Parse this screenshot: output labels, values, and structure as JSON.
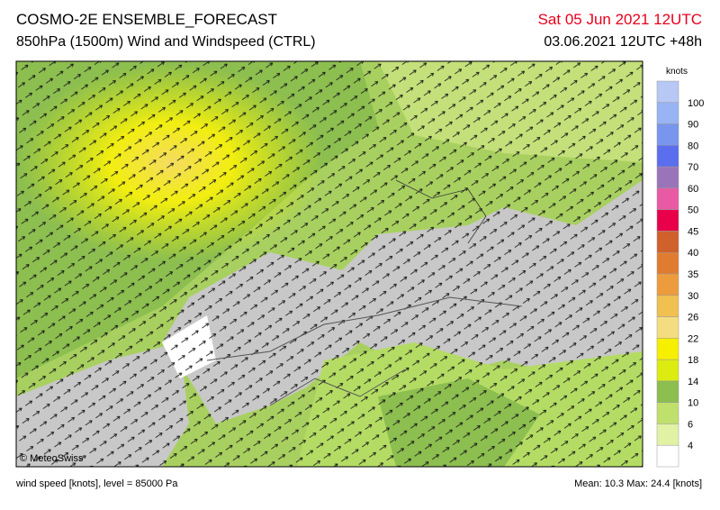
{
  "header": {
    "title": "COSMO-2E ENSEMBLE_FORECAST",
    "subtitle": "850hPa (1500m) Wind and Windspeed (CTRL)",
    "valid_time": "Sat 05 Jun 2021 12UTC",
    "run_time": "03.06.2021 12UTC +48h"
  },
  "legend": {
    "unit": "knots",
    "labels": [
      "100",
      "90",
      "80",
      "70",
      "60",
      "50",
      "45",
      "40",
      "35",
      "30",
      "26",
      "22",
      "18",
      "14",
      "10",
      "6",
      "4"
    ],
    "colors": [
      "#b8c8f4",
      "#98b4f4",
      "#7896ee",
      "#5a6eee",
      "#9a74b8",
      "#e85aa4",
      "#e8004a",
      "#d0602c",
      "#e07c30",
      "#ec9c3c",
      "#f0c050",
      "#f4dc80",
      "#f6f000",
      "#dcec10",
      "#8cbe50",
      "#c0e06c",
      "#e2f2a4",
      "#ffffff"
    ]
  },
  "map": {
    "copyright": "© MeteoSwiss"
  },
  "footer": {
    "left": "wind speed [knots], level = 85000 Pa",
    "right": "Mean:  10.3 Max:  24.4 [knots]"
  }
}
